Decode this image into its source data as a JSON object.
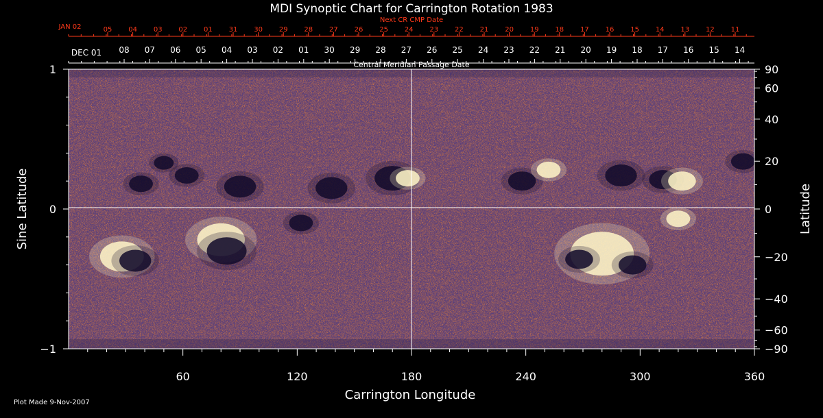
{
  "chart_data": {
    "type": "heatmap",
    "title": "MDI Synoptic Chart for Carrington Rotation 1983",
    "xlabel": "Carrington Longitude",
    "ylabel_left": "Sine Latitude",
    "ylabel_right": "Latitude",
    "xlim": [
      0,
      360
    ],
    "ylim": [
      -1,
      1
    ],
    "x_ticks": [
      60,
      120,
      180,
      240,
      300,
      360
    ],
    "y_ticks_left": [
      {
        "value": 1,
        "label": "1"
      },
      {
        "value": 0,
        "label": "0"
      },
      {
        "value": -1,
        "label": "−1"
      }
    ],
    "y_ticks_right_deg": [
      90,
      60,
      40,
      20,
      0,
      -20,
      -40,
      -60,
      -90
    ],
    "y_ticks_right_labels": [
      "90",
      "60",
      "40",
      "20",
      "0",
      "−20",
      "−40",
      "−60",
      "−90"
    ],
    "top_axis_title": "Central Meridian Passage Date",
    "cmp_start_label": "DEC 01",
    "cmp_dates": [
      "08",
      "07",
      "06",
      "05",
      "04",
      "03",
      "02",
      "01",
      "30",
      "29",
      "28",
      "27",
      "26",
      "25",
      "24",
      "23",
      "22",
      "21",
      "20",
      "19",
      "18",
      "17",
      "16",
      "15",
      "14"
    ],
    "next_axis_title": "Next CR CMP Date",
    "next_start_label": "JAN 02",
    "next_dates": [
      "05",
      "04",
      "03",
      "02",
      "01",
      "31",
      "30",
      "29",
      "28",
      "27",
      "26",
      "25",
      "24",
      "23",
      "22",
      "21",
      "20",
      "19",
      "18",
      "17",
      "16",
      "15",
      "14",
      "13",
      "12",
      "11"
    ],
    "grid": "lines at longitude 180 and latitude 0",
    "colors": {
      "background": "#c84a1c",
      "positive_polarity": "#fff6c8",
      "negative_polarity": "#120a2a",
      "next_axis": "#ff3a1a"
    },
    "active_regions": [
      {
        "lon": 28,
        "sinlat": -0.34,
        "kind": "pos",
        "size": 11
      },
      {
        "lon": 35,
        "sinlat": -0.37,
        "kind": "neg",
        "size": 8
      },
      {
        "lon": 38,
        "sinlat": 0.18,
        "kind": "neg",
        "size": 6
      },
      {
        "lon": 50,
        "sinlat": 0.33,
        "kind": "neg",
        "size": 5
      },
      {
        "lon": 62,
        "sinlat": 0.24,
        "kind": "neg",
        "size": 6
      },
      {
        "lon": 80,
        "sinlat": -0.22,
        "kind": "pos",
        "size": 12
      },
      {
        "lon": 83,
        "sinlat": -0.3,
        "kind": "neg",
        "size": 10
      },
      {
        "lon": 90,
        "sinlat": 0.16,
        "kind": "neg",
        "size": 8
      },
      {
        "lon": 122,
        "sinlat": -0.1,
        "kind": "neg",
        "size": 6
      },
      {
        "lon": 138,
        "sinlat": 0.15,
        "kind": "neg",
        "size": 8
      },
      {
        "lon": 170,
        "sinlat": 0.22,
        "kind": "neg",
        "size": 9
      },
      {
        "lon": 178,
        "sinlat": 0.22,
        "kind": "pos",
        "size": 6
      },
      {
        "lon": 238,
        "sinlat": 0.2,
        "kind": "neg",
        "size": 7
      },
      {
        "lon": 252,
        "sinlat": 0.28,
        "kind": "pos",
        "size": 6
      },
      {
        "lon": 280,
        "sinlat": -0.32,
        "kind": "pos",
        "size": 16
      },
      {
        "lon": 268,
        "sinlat": -0.36,
        "kind": "neg",
        "size": 7
      },
      {
        "lon": 296,
        "sinlat": -0.4,
        "kind": "neg",
        "size": 7
      },
      {
        "lon": 290,
        "sinlat": 0.24,
        "kind": "neg",
        "size": 8
      },
      {
        "lon": 312,
        "sinlat": 0.21,
        "kind": "neg",
        "size": 7
      },
      {
        "lon": 322,
        "sinlat": 0.2,
        "kind": "pos",
        "size": 7
      },
      {
        "lon": 320,
        "sinlat": -0.07,
        "kind": "pos",
        "size": 6
      },
      {
        "lon": 354,
        "sinlat": 0.34,
        "kind": "neg",
        "size": 6
      }
    ]
  },
  "footer": {
    "plot_made": "Plot Made  9-Nov-2007"
  }
}
